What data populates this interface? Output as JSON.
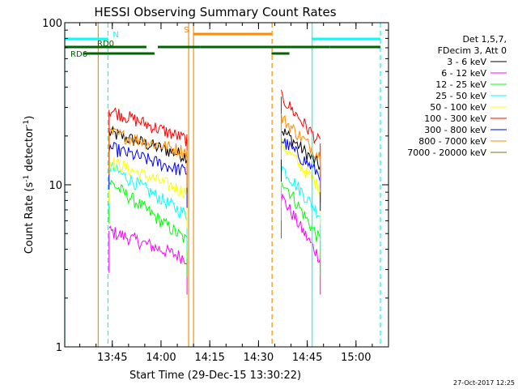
{
  "chart_data": {
    "type": "line",
    "title": "HESSI Observing Summary Count Rates",
    "xlabel": "Start Time (29-Dec-15 13:30:22)",
    "ylabel_main": "Count Rate (s",
    "ylabel_sup1": "-1",
    "ylabel_mid": " detector",
    "ylabel_sup2": "-1",
    "ylabel_end": ")",
    "y_scale": "log",
    "xlim": [
      "13:30:22",
      "15:10:00"
    ],
    "ylim": [
      1,
      100
    ],
    "x_ticks": [
      "13:45",
      "14:00",
      "14:15",
      "14:30",
      "14:45",
      "15:00"
    ],
    "y_ticks": [
      "1",
      "10",
      "100"
    ],
    "legend_header": [
      "Det 1,5,7,",
      "FDecim 3, Att 0"
    ],
    "legend_position": "right",
    "series": [
      {
        "name": "3 - 6 keV",
        "color": "#000000",
        "segments": [
          {
            "start": "13:44:00",
            "end": "14:08:00",
            "start_value": 21,
            "end_value": 15
          },
          {
            "start": "14:37:00",
            "end": "14:49:00",
            "start_value": 22,
            "end_value": 13
          }
        ]
      },
      {
        "name": "6 - 12 keV",
        "color": "#ff00ff",
        "segments": [
          {
            "start": "13:44:00",
            "end": "14:08:00",
            "start_value": 5.2,
            "end_value": 3.5
          },
          {
            "start": "14:37:00",
            "end": "14:49:00",
            "start_value": 8.5,
            "end_value": 3.5
          }
        ]
      },
      {
        "name": "12 - 25 keV",
        "color": "#00ff00",
        "segments": [
          {
            "start": "13:44:00",
            "end": "14:08:00",
            "start_value": 10.5,
            "end_value": 4.5
          },
          {
            "start": "14:37:00",
            "end": "14:49:00",
            "start_value": 11,
            "end_value": 4.5
          }
        ]
      },
      {
        "name": "25 - 50 keV",
        "color": "#00ffff",
        "segments": [
          {
            "start": "13:44:00",
            "end": "14:08:00",
            "start_value": 13,
            "end_value": 6.5
          },
          {
            "start": "14:37:00",
            "end": "14:49:00",
            "start_value": 13,
            "end_value": 6.5
          }
        ]
      },
      {
        "name": "50 - 100 keV",
        "color": "#ffff00",
        "segments": [
          {
            "start": "13:44:00",
            "end": "14:08:00",
            "start_value": 14,
            "end_value": 9
          },
          {
            "start": "14:37:00",
            "end": "14:49:00",
            "start_value": 18,
            "end_value": 9.5
          }
        ]
      },
      {
        "name": "100 - 300 keV",
        "color": "#ff0000",
        "segments": [
          {
            "start": "13:44:00",
            "end": "14:08:00",
            "start_value": 29,
            "end_value": 19
          },
          {
            "start": "14:37:00",
            "end": "14:49:00",
            "start_value": 35,
            "end_value": 18
          }
        ]
      },
      {
        "name": "300 - 800 keV",
        "color": "#0000ff",
        "segments": [
          {
            "start": "13:44:00",
            "end": "14:08:00",
            "start_value": 17,
            "end_value": 12
          },
          {
            "start": "14:37:00",
            "end": "14:49:00",
            "start_value": 19,
            "end_value": 11.5
          }
        ]
      },
      {
        "name": "800 - 7000 keV",
        "color": "#ff8c00",
        "segments": [
          {
            "start": "13:44:00",
            "end": "14:08:00",
            "start_value": 21,
            "end_value": 16
          },
          {
            "start": "14:37:00",
            "end": "14:49:00",
            "start_value": 26,
            "end_value": 15
          }
        ]
      },
      {
        "name": "7000 - 20000 keV",
        "color": "#8b6914",
        "segments": []
      }
    ],
    "flag_bars": [
      {
        "label": "N",
        "color": "#00ffff",
        "intervals": [
          [
            "13:30:22",
            "13:43:40"
          ],
          [
            "14:46:30",
            "15:07:30"
          ]
        ]
      },
      {
        "label": "S",
        "color": "#ff8c00",
        "intervals": [
          [
            "14:10:00",
            "14:34:00"
          ]
        ]
      },
      {
        "label": "RD0",
        "color": "#006400",
        "intervals": [
          [
            "13:30:22",
            "13:55:30"
          ],
          [
            "13:59:00",
            "14:12:00"
          ],
          [
            "14:12:00",
            "14:34:00"
          ],
          [
            "14:34:00",
            "14:40:00"
          ],
          [
            "14:40:00",
            "14:52:00"
          ],
          [
            "14:52:00",
            "15:07:30"
          ]
        ]
      },
      {
        "label": "RD6",
        "color": "#006400",
        "intervals": [
          [
            "13:36:00",
            "13:58:00"
          ],
          [
            "14:34:00",
            "14:39:30"
          ]
        ]
      }
    ],
    "vertical_markers": [
      {
        "time": "13:30:22",
        "color": "#00ffff",
        "style": "solid"
      },
      {
        "time": "13:43:40",
        "color": "#00ffff",
        "style": "dashed"
      },
      {
        "time": "13:40:40",
        "color": "#ff8c00",
        "style": "solid"
      },
      {
        "time": "14:08:30",
        "color": "#ff8c00",
        "style": "solid"
      },
      {
        "time": "14:10:00",
        "color": "#ff8c00",
        "style": "solid"
      },
      {
        "time": "14:34:10",
        "color": "#ff8c00",
        "style": "dashed"
      },
      {
        "time": "14:46:30",
        "color": "#00ffff",
        "style": "solid"
      },
      {
        "time": "15:07:30",
        "color": "#00ffff",
        "style": "dashed"
      }
    ],
    "grid": false,
    "footer_timestamp": "27-Oct-2017 12:25"
  }
}
